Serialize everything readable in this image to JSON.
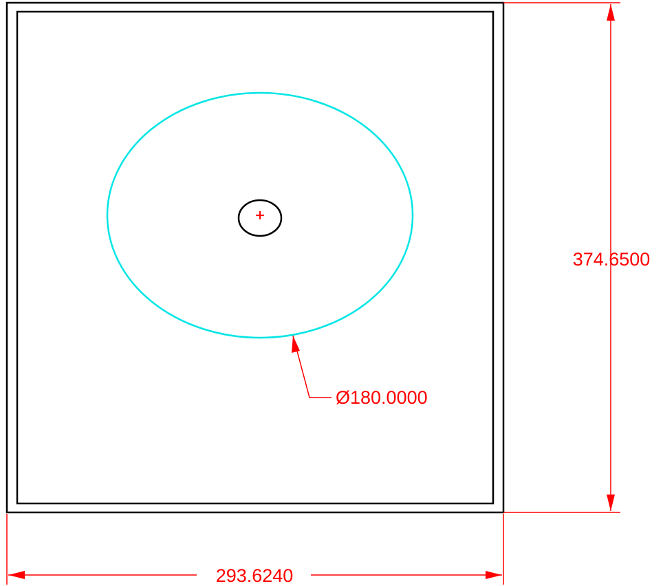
{
  "colors": {
    "background": "#ffffff",
    "outline": "#000000",
    "dimension": "#ff0000",
    "circle": "#00e5e5"
  },
  "dimensions": {
    "height_label": "374.6500",
    "width_label": "293.6240",
    "diameter_label": "Ø180.0000"
  },
  "icons": {
    "center_mark": "plus-icon"
  }
}
